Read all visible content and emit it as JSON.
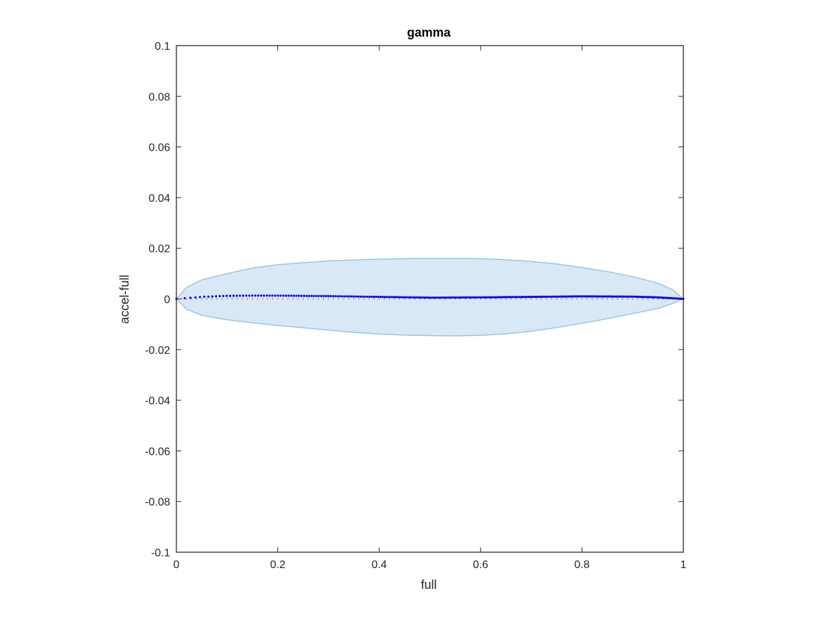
{
  "chart_data": {
    "type": "scatter",
    "title": "gamma",
    "xlabel": "full",
    "ylabel": "accel-full",
    "xlim": [
      0,
      1
    ],
    "ylim": [
      -0.1,
      0.1
    ],
    "xticks": [
      "0",
      "0.2",
      "0.4",
      "0.6",
      "0.8",
      "1"
    ],
    "xtick_values": [
      0,
      0.2,
      0.4,
      0.6,
      0.8,
      1
    ],
    "yticks": [
      "-0.1",
      "-0.08",
      "-0.06",
      "-0.04",
      "-0.02",
      "0",
      "0.02",
      "0.04",
      "0.06",
      "0.08",
      "0.1"
    ],
    "ytick_values": [
      -0.1,
      -0.08,
      -0.06,
      -0.04,
      -0.02,
      0,
      0.02,
      0.04,
      0.06,
      0.08,
      0.1
    ],
    "grid": false,
    "series": [
      {
        "kind": "band",
        "color": "#9ac4e3",
        "fill": "#d9e8f5",
        "upper": [
          [
            0,
            0
          ],
          [
            0.02,
            0.0045
          ],
          [
            0.05,
            0.0075
          ],
          [
            0.1,
            0.01
          ],
          [
            0.15,
            0.0122
          ],
          [
            0.2,
            0.0135
          ],
          [
            0.25,
            0.0143
          ],
          [
            0.3,
            0.015
          ],
          [
            0.35,
            0.0154
          ],
          [
            0.4,
            0.0157
          ],
          [
            0.45,
            0.0159
          ],
          [
            0.5,
            0.016
          ],
          [
            0.55,
            0.016
          ],
          [
            0.6,
            0.0159
          ],
          [
            0.65,
            0.0155
          ],
          [
            0.7,
            0.0148
          ],
          [
            0.75,
            0.0138
          ],
          [
            0.8,
            0.0124
          ],
          [
            0.85,
            0.0108
          ],
          [
            0.9,
            0.0088
          ],
          [
            0.95,
            0.0062
          ],
          [
            0.98,
            0.0035
          ],
          [
            1,
            0
          ]
        ],
        "lower": [
          [
            0,
            0
          ],
          [
            0.02,
            -0.004
          ],
          [
            0.05,
            -0.0065
          ],
          [
            0.1,
            -0.0082
          ],
          [
            0.15,
            -0.0094
          ],
          [
            0.2,
            -0.0105
          ],
          [
            0.25,
            -0.0114
          ],
          [
            0.3,
            -0.0123
          ],
          [
            0.35,
            -0.0132
          ],
          [
            0.4,
            -0.0139
          ],
          [
            0.45,
            -0.0143
          ],
          [
            0.5,
            -0.0145
          ],
          [
            0.55,
            -0.0146
          ],
          [
            0.6,
            -0.0144
          ],
          [
            0.65,
            -0.0138
          ],
          [
            0.7,
            -0.0128
          ],
          [
            0.75,
            -0.0113
          ],
          [
            0.8,
            -0.0096
          ],
          [
            0.85,
            -0.0078
          ],
          [
            0.9,
            -0.0058
          ],
          [
            0.95,
            -0.0038
          ],
          [
            0.98,
            -0.0018
          ],
          [
            1,
            0
          ]
        ]
      },
      {
        "kind": "zero_reference",
        "color": "#ff3b3b",
        "y": 0
      },
      {
        "kind": "points",
        "color": "#0000ff",
        "x_start": 0,
        "x_end": 1,
        "count": 240,
        "curve": [
          [
            0,
            0
          ],
          [
            0.05,
            0.0008
          ],
          [
            0.1,
            0.0012
          ],
          [
            0.15,
            0.0013
          ],
          [
            0.2,
            0.0013
          ],
          [
            0.3,
            0.0011
          ],
          [
            0.4,
            0.0008
          ],
          [
            0.5,
            0.0005
          ],
          [
            0.6,
            0.0006
          ],
          [
            0.7,
            0.0008
          ],
          [
            0.8,
            0.001
          ],
          [
            0.9,
            0.0009
          ],
          [
            0.95,
            0.0006
          ],
          [
            1,
            0
          ]
        ]
      }
    ]
  }
}
